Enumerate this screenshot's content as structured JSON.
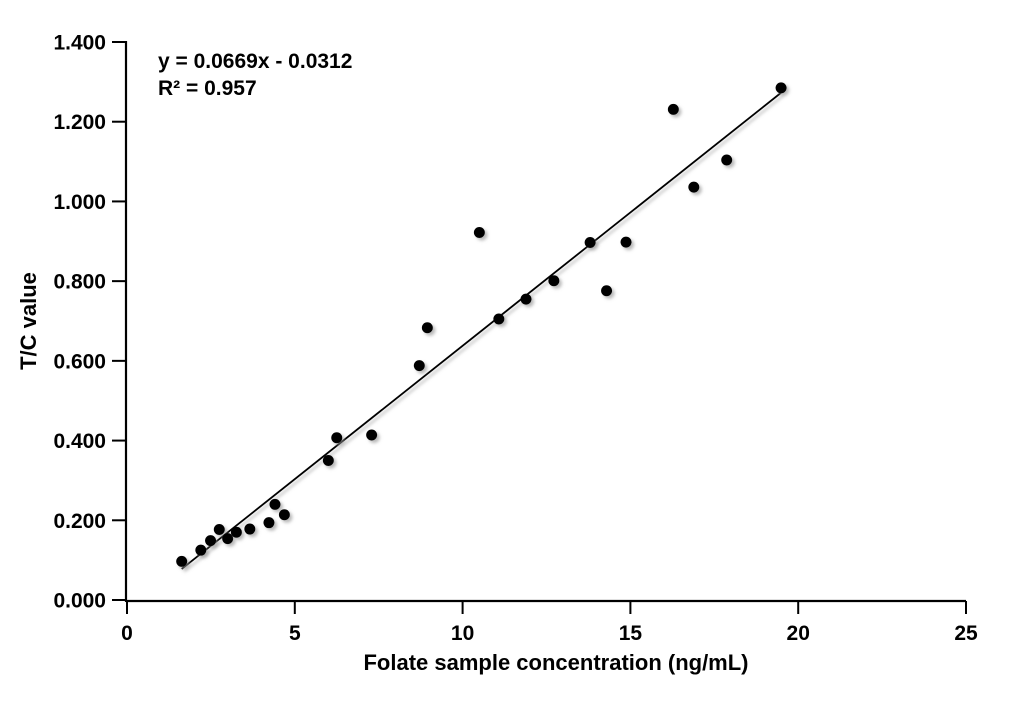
{
  "chart_data": {
    "type": "scatter",
    "title": "",
    "xlabel": "Folate sample concentration (ng/mL)",
    "ylabel": "T/C value",
    "xlim": [
      0,
      25
    ],
    "ylim": [
      0,
      1.4
    ],
    "grid": false,
    "legend": "none",
    "marker_color": "#000000",
    "line_color": "#000000",
    "annotation": {
      "equation": "y = 0.0669x - 0.0312",
      "r_squared": "R² = 0.957"
    },
    "x_ticks": [
      {
        "value": 0,
        "label": "0"
      },
      {
        "value": 5,
        "label": "5"
      },
      {
        "value": 10,
        "label": "10"
      },
      {
        "value": 15,
        "label": "15"
      },
      {
        "value": 20,
        "label": "20"
      },
      {
        "value": 25,
        "label": "25"
      }
    ],
    "y_ticks": [
      {
        "value": 0.0,
        "label": "0.000"
      },
      {
        "value": 0.2,
        "label": "0.200"
      },
      {
        "value": 0.4,
        "label": "0.400"
      },
      {
        "value": 0.6,
        "label": "0.600"
      },
      {
        "value": 0.8,
        "label": "0.800"
      },
      {
        "value": 1.0,
        "label": "1.000"
      },
      {
        "value": 1.2,
        "label": "1.200"
      },
      {
        "value": 1.4,
        "label": "1.400"
      }
    ],
    "points": [
      [
        1.63,
        0.097
      ],
      [
        2.2,
        0.125
      ],
      [
        2.49,
        0.149
      ],
      [
        2.75,
        0.177
      ],
      [
        3.0,
        0.154
      ],
      [
        3.26,
        0.17
      ],
      [
        3.66,
        0.178
      ],
      [
        4.23,
        0.194
      ],
      [
        4.41,
        0.24
      ],
      [
        4.69,
        0.214
      ],
      [
        6.0,
        0.35
      ],
      [
        6.25,
        0.407
      ],
      [
        7.29,
        0.414
      ],
      [
        8.71,
        0.588
      ],
      [
        8.95,
        0.683
      ],
      [
        10.5,
        0.922
      ],
      [
        11.08,
        0.705
      ],
      [
        11.89,
        0.755
      ],
      [
        12.72,
        0.801
      ],
      [
        13.8,
        0.897
      ],
      [
        14.29,
        0.776
      ],
      [
        14.87,
        0.898
      ],
      [
        16.28,
        1.231
      ],
      [
        16.89,
        1.036
      ],
      [
        17.87,
        1.104
      ],
      [
        19.49,
        1.285
      ]
    ],
    "trendline": {
      "slope": 0.0669,
      "intercept": -0.0312,
      "x_start": 1.63,
      "x_end": 19.49
    }
  }
}
